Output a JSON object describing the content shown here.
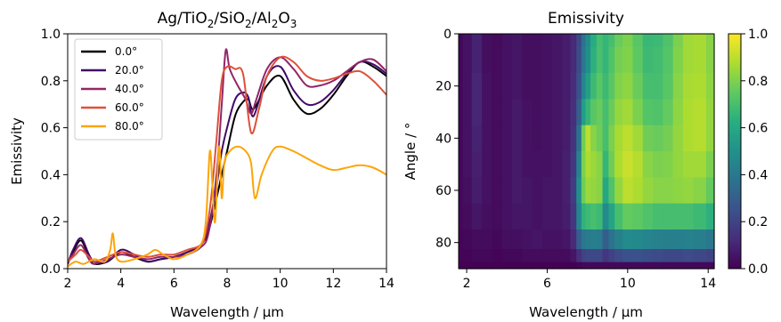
{
  "chart_data": [
    {
      "type": "line",
      "title": "Ag/TiO2/SiO2/Al2O3",
      "title_parts": {
        "p1": "Ag/TiO",
        "s1": "2",
        "p2": "/SiO",
        "s2": "2",
        "p3": "/Al",
        "s3": "2",
        "p4": "O",
        "s4": "3"
      },
      "xlabel": "Wavelength / µm",
      "ylabel": "Emissivity",
      "xlim": [
        2,
        14
      ],
      "ylim": [
        0,
        1
      ],
      "xticks": [
        2,
        4,
        6,
        8,
        10,
        12,
        14
      ],
      "yticks": [
        0.0,
        0.2,
        0.4,
        0.6,
        0.8,
        1.0
      ],
      "xtick_labels": [
        "2",
        "4",
        "6",
        "8",
        "10",
        "12",
        "14"
      ],
      "ytick_labels": [
        "0.0",
        "0.2",
        "0.4",
        "0.6",
        "0.8",
        "1.0"
      ],
      "legend_position": "top-left",
      "series": [
        {
          "name": "0.0°",
          "color": "#000004",
          "x": [
            2,
            2.2,
            2.5,
            2.8,
            3,
            3.5,
            4,
            4.5,
            5,
            5.5,
            6,
            6.5,
            7,
            7.3,
            7.6,
            7.8,
            8,
            8.3,
            8.6,
            8.8,
            9,
            9.5,
            10,
            10.5,
            11,
            11.5,
            12,
            12.5,
            13,
            13.5,
            14
          ],
          "y": [
            0.02,
            0.07,
            0.12,
            0.05,
            0.02,
            0.03,
            0.07,
            0.05,
            0.03,
            0.04,
            0.05,
            0.07,
            0.1,
            0.16,
            0.3,
            0.4,
            0.5,
            0.65,
            0.71,
            0.72,
            0.68,
            0.78,
            0.82,
            0.72,
            0.66,
            0.68,
            0.74,
            0.82,
            0.88,
            0.86,
            0.82
          ]
        },
        {
          "name": "20.0°",
          "color": "#420a68",
          "x": [
            2,
            2.2,
            2.5,
            2.8,
            3,
            3.5,
            4,
            4.5,
            5,
            5.5,
            6,
            6.5,
            7,
            7.3,
            7.6,
            7.8,
            8,
            8.3,
            8.6,
            8.8,
            9,
            9.5,
            10,
            10.5,
            11,
            11.5,
            12,
            12.5,
            13,
            13.5,
            14
          ],
          "y": [
            0.02,
            0.08,
            0.13,
            0.06,
            0.03,
            0.03,
            0.08,
            0.06,
            0.03,
            0.04,
            0.05,
            0.07,
            0.1,
            0.18,
            0.35,
            0.5,
            0.6,
            0.72,
            0.75,
            0.73,
            0.65,
            0.82,
            0.86,
            0.76,
            0.7,
            0.71,
            0.76,
            0.83,
            0.88,
            0.87,
            0.83
          ]
        },
        {
          "name": "40.0°",
          "color": "#932667",
          "x": [
            2,
            2.2,
            2.5,
            2.8,
            3,
            3.5,
            4,
            4.5,
            5,
            5.5,
            6,
            6.5,
            7,
            7.3,
            7.6,
            7.8,
            7.95,
            8.1,
            8.4,
            8.7,
            8.9,
            9.1,
            9.5,
            10,
            10.5,
            11,
            11.5,
            12,
            12.5,
            13,
            13.5,
            14
          ],
          "y": [
            0.03,
            0.06,
            0.1,
            0.04,
            0.02,
            0.04,
            0.06,
            0.05,
            0.04,
            0.05,
            0.05,
            0.06,
            0.09,
            0.15,
            0.4,
            0.7,
            0.93,
            0.85,
            0.78,
            0.72,
            0.66,
            0.72,
            0.85,
            0.9,
            0.85,
            0.78,
            0.78,
            0.8,
            0.84,
            0.88,
            0.89,
            0.84
          ]
        },
        {
          "name": "60.0°",
          "color": "#dd513a",
          "x": [
            2,
            2.3,
            2.5,
            2.8,
            3,
            3.5,
            4,
            4.5,
            5,
            5.5,
            6,
            6.5,
            7,
            7.2,
            7.4,
            7.6,
            7.8,
            8,
            8.3,
            8.6,
            8.9,
            9.2,
            9.5,
            10,
            10.5,
            11,
            11.5,
            12,
            12.5,
            13,
            13.5,
            14
          ],
          "y": [
            0.03,
            0.06,
            0.08,
            0.05,
            0.03,
            0.05,
            0.07,
            0.06,
            0.05,
            0.06,
            0.06,
            0.08,
            0.1,
            0.15,
            0.3,
            0.55,
            0.8,
            0.86,
            0.85,
            0.83,
            0.58,
            0.68,
            0.82,
            0.9,
            0.88,
            0.82,
            0.8,
            0.81,
            0.83,
            0.84,
            0.8,
            0.74
          ]
        },
        {
          "name": "80.0°",
          "color": "#fca50a",
          "x": [
            2,
            2.3,
            2.6,
            3,
            3.4,
            3.6,
            3.7,
            3.8,
            4,
            4.5,
            5,
            5.3,
            5.6,
            6,
            6.5,
            7,
            7.2,
            7.35,
            7.45,
            7.55,
            7.7,
            7.8,
            7.9,
            8.1,
            8.4,
            8.7,
            8.9,
            9.05,
            9.3,
            9.7,
            10,
            10.5,
            11,
            11.5,
            12,
            12.5,
            13,
            13.5,
            14
          ],
          "y": [
            0.01,
            0.03,
            0.02,
            0.04,
            0.03,
            0.08,
            0.15,
            0.06,
            0.03,
            0.04,
            0.06,
            0.08,
            0.06,
            0.04,
            0.06,
            0.1,
            0.2,
            0.5,
            0.35,
            0.2,
            0.52,
            0.3,
            0.45,
            0.5,
            0.52,
            0.5,
            0.45,
            0.3,
            0.4,
            0.5,
            0.52,
            0.5,
            0.47,
            0.44,
            0.42,
            0.43,
            0.44,
            0.43,
            0.4
          ]
        }
      ]
    },
    {
      "type": "heatmap",
      "title": "Emissivity",
      "xlabel": "Wavelength / µm",
      "ylabel": "Angle / °",
      "xlim": [
        1.6,
        14.3
      ],
      "ylim": [
        90,
        0
      ],
      "xticks": [
        2,
        6,
        10,
        14
      ],
      "yticks": [
        0,
        20,
        40,
        60,
        80
      ],
      "xtick_labels": [
        "2",
        "6",
        "10",
        "14"
      ],
      "ytick_labels": [
        "0",
        "20",
        "40",
        "60",
        "80"
      ],
      "colorbar": {
        "colormap": "viridis",
        "range": [
          0,
          1
        ],
        "ticks": [
          0.0,
          0.2,
          0.4,
          0.6,
          0.8,
          1.0
        ],
        "tick_labels": [
          "0.0",
          "0.2",
          "0.4",
          "0.6",
          "0.8",
          "1.0"
        ]
      },
      "wavelength": [
        1.6,
        2.0,
        2.5,
        3.0,
        3.5,
        4.0,
        4.5,
        5.0,
        5.5,
        6.0,
        6.5,
        7.0,
        7.3,
        7.6,
        7.8,
        8.0,
        8.3,
        8.6,
        8.9,
        9.2,
        9.5,
        10.0,
        10.5,
        11.0,
        11.5,
        12.0,
        12.5,
        13.0,
        13.5,
        14.3
      ],
      "angles": [
        0,
        10,
        20,
        30,
        40,
        50,
        60,
        70,
        80,
        85,
        90
      ],
      "z": [
        [
          0.02,
          0.05,
          0.1,
          0.04,
          0.03,
          0.05,
          0.06,
          0.04,
          0.04,
          0.05,
          0.06,
          0.08,
          0.12,
          0.22,
          0.38,
          0.48,
          0.62,
          0.7,
          0.66,
          0.7,
          0.77,
          0.8,
          0.74,
          0.67,
          0.68,
          0.72,
          0.8,
          0.86,
          0.87,
          0.82
        ],
        [
          0.02,
          0.05,
          0.1,
          0.04,
          0.03,
          0.05,
          0.06,
          0.04,
          0.04,
          0.05,
          0.06,
          0.08,
          0.12,
          0.23,
          0.4,
          0.5,
          0.64,
          0.71,
          0.66,
          0.72,
          0.79,
          0.81,
          0.75,
          0.68,
          0.69,
          0.73,
          0.81,
          0.86,
          0.87,
          0.82
        ],
        [
          0.02,
          0.05,
          0.11,
          0.05,
          0.03,
          0.05,
          0.06,
          0.04,
          0.04,
          0.05,
          0.06,
          0.08,
          0.13,
          0.25,
          0.45,
          0.56,
          0.68,
          0.74,
          0.68,
          0.74,
          0.81,
          0.83,
          0.77,
          0.7,
          0.7,
          0.74,
          0.82,
          0.87,
          0.88,
          0.83
        ],
        [
          0.02,
          0.05,
          0.11,
          0.05,
          0.03,
          0.05,
          0.07,
          0.05,
          0.04,
          0.05,
          0.06,
          0.08,
          0.14,
          0.3,
          0.55,
          0.66,
          0.74,
          0.77,
          0.7,
          0.77,
          0.84,
          0.86,
          0.8,
          0.73,
          0.72,
          0.76,
          0.83,
          0.88,
          0.89,
          0.84
        ],
        [
          0.02,
          0.05,
          0.1,
          0.05,
          0.03,
          0.05,
          0.07,
          0.05,
          0.04,
          0.05,
          0.06,
          0.08,
          0.15,
          0.38,
          0.78,
          0.9,
          0.82,
          0.78,
          0.7,
          0.8,
          0.87,
          0.9,
          0.86,
          0.78,
          0.77,
          0.79,
          0.84,
          0.88,
          0.89,
          0.84
        ],
        [
          0.02,
          0.05,
          0.09,
          0.05,
          0.03,
          0.05,
          0.07,
          0.05,
          0.05,
          0.05,
          0.06,
          0.09,
          0.16,
          0.45,
          0.8,
          0.88,
          0.85,
          0.82,
          0.66,
          0.78,
          0.88,
          0.92,
          0.89,
          0.82,
          0.8,
          0.81,
          0.84,
          0.86,
          0.86,
          0.8
        ],
        [
          0.02,
          0.04,
          0.08,
          0.05,
          0.03,
          0.05,
          0.07,
          0.06,
          0.05,
          0.06,
          0.06,
          0.09,
          0.18,
          0.5,
          0.78,
          0.85,
          0.84,
          0.82,
          0.6,
          0.72,
          0.84,
          0.9,
          0.88,
          0.84,
          0.82,
          0.82,
          0.83,
          0.84,
          0.82,
          0.76
        ],
        [
          0.02,
          0.03,
          0.06,
          0.04,
          0.03,
          0.05,
          0.06,
          0.06,
          0.05,
          0.06,
          0.06,
          0.08,
          0.16,
          0.45,
          0.65,
          0.68,
          0.7,
          0.68,
          0.48,
          0.58,
          0.7,
          0.76,
          0.75,
          0.72,
          0.7,
          0.7,
          0.7,
          0.7,
          0.68,
          0.64
        ],
        [
          0.01,
          0.02,
          0.03,
          0.03,
          0.02,
          0.04,
          0.04,
          0.05,
          0.06,
          0.05,
          0.05,
          0.06,
          0.12,
          0.3,
          0.4,
          0.42,
          0.43,
          0.42,
          0.3,
          0.38,
          0.44,
          0.48,
          0.47,
          0.45,
          0.44,
          0.43,
          0.43,
          0.44,
          0.43,
          0.4
        ],
        [
          0.01,
          0.01,
          0.02,
          0.02,
          0.01,
          0.02,
          0.02,
          0.03,
          0.03,
          0.03,
          0.03,
          0.03,
          0.06,
          0.14,
          0.2,
          0.22,
          0.22,
          0.22,
          0.16,
          0.2,
          0.23,
          0.25,
          0.25,
          0.24,
          0.23,
          0.22,
          0.22,
          0.23,
          0.22,
          0.2
        ],
        [
          0.0,
          0.0,
          0.0,
          0.0,
          0.0,
          0.0,
          0.0,
          0.0,
          0.0,
          0.0,
          0.0,
          0.0,
          0.0,
          0.01,
          0.02,
          0.02,
          0.02,
          0.02,
          0.02,
          0.02,
          0.02,
          0.02,
          0.02,
          0.02,
          0.02,
          0.02,
          0.02,
          0.02,
          0.02,
          0.02
        ]
      ]
    }
  ]
}
